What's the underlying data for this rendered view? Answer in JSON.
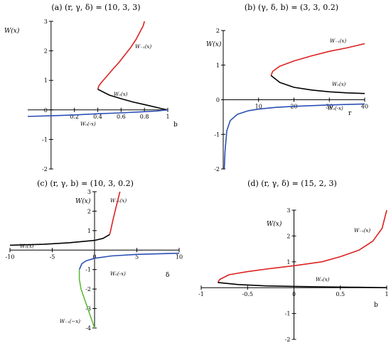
{
  "colors": {
    "red": "#dd2222",
    "black": "#000000",
    "blue": "#2b4fb5",
    "green": "#5dbb3a"
  },
  "chart_data": [
    {
      "id": "a",
      "type": "line",
      "title": "(a) (r, γ, δ) = (10, 3, 3)",
      "ylabel": "W(x)",
      "xlabel": "b",
      "xlim": [
        -0.2,
        1.0
      ],
      "ylim": [
        -2,
        3
      ],
      "xticks": [
        0.2,
        0.4,
        0.6,
        0.8,
        1
      ],
      "yticks": [
        -2,
        -1,
        0,
        1,
        2,
        3
      ],
      "series": [
        {
          "name": "W₋₁(x)",
          "color": "red",
          "x": [
            0.4,
            0.41,
            0.44,
            0.48,
            0.53,
            0.58,
            0.63,
            0.68,
            0.73,
            0.77,
            0.79,
            0.8
          ],
          "y": [
            0.7,
            0.82,
            0.97,
            1.15,
            1.38,
            1.6,
            1.85,
            2.1,
            2.4,
            2.7,
            2.85,
            3.0
          ]
        },
        {
          "name": "W₀(x)",
          "color": "black",
          "x": [
            0.4,
            0.5,
            0.6,
            0.7,
            0.8,
            0.9,
            0.95,
            1.0
          ],
          "y": [
            0.7,
            0.5,
            0.38,
            0.27,
            0.18,
            0.09,
            0.04,
            0.0
          ]
        },
        {
          "name": "W₀(-x)",
          "color": "blue",
          "x": [
            -0.2,
            0.0,
            0.2,
            0.4,
            0.6,
            0.8,
            0.9,
            0.95,
            1.0
          ],
          "y": [
            -0.22,
            -0.2,
            -0.17,
            -0.13,
            -0.1,
            -0.06,
            -0.04,
            -0.02,
            0.0
          ]
        }
      ]
    },
    {
      "id": "b",
      "type": "line",
      "title": "(b) (γ, δ, b) = (3, 3, 0.2)",
      "ylabel": "W(x)",
      "xlabel": "r",
      "xlim": [
        0,
        40
      ],
      "ylim": [
        -2,
        2
      ],
      "xticks": [
        10,
        20,
        30,
        40
      ],
      "yticks": [
        -2,
        -1,
        0,
        1,
        2
      ],
      "series": [
        {
          "name": "W₋₁(x)",
          "color": "red",
          "x": [
            13.5,
            14,
            16,
            20,
            25,
            30,
            35,
            40
          ],
          "y": [
            0.7,
            0.82,
            0.97,
            1.12,
            1.27,
            1.4,
            1.5,
            1.62
          ]
        },
        {
          "name": "W₀(x)",
          "color": "black",
          "x": [
            13.5,
            16,
            20,
            25,
            30,
            35,
            40
          ],
          "y": [
            0.7,
            0.5,
            0.36,
            0.28,
            0.23,
            0.2,
            0.18
          ]
        },
        {
          "name": "W₀(-x)",
          "color": "blue",
          "x": [
            0.3,
            0.5,
            1,
            2,
            4,
            7,
            10,
            15,
            20,
            30,
            40
          ],
          "y": [
            -2.0,
            -1.5,
            -0.9,
            -0.6,
            -0.42,
            -0.32,
            -0.27,
            -0.22,
            -0.19,
            -0.15,
            -0.12
          ]
        }
      ]
    },
    {
      "id": "c",
      "type": "line",
      "title": "(c) (r, γ, b) = (10, 3, 0.2)",
      "ylabel": "W(x)",
      "xlabel": "δ",
      "xlim": [
        -10,
        10
      ],
      "ylim": [
        -4,
        3
      ],
      "xticks": [
        -10,
        -5,
        0,
        5,
        10
      ],
      "yticks": [
        -4,
        -3,
        -2,
        -1,
        1,
        2,
        3
      ],
      "series": [
        {
          "name": "W₋₁(x)",
          "color": "red",
          "x": [
            3.0,
            2.6,
            2.2,
            2.0,
            1.9,
            1.85,
            1.8,
            1.8
          ],
          "y": [
            3.0,
            2.3,
            1.6,
            1.2,
            1.0,
            0.9,
            0.85,
            0.8
          ]
        },
        {
          "name": "W₀(x)",
          "color": "black",
          "x": [
            -10,
            -6,
            -3,
            0,
            1,
            1.8
          ],
          "y": [
            0.25,
            0.3,
            0.38,
            0.5,
            0.6,
            0.8
          ]
        },
        {
          "name": "W₀(-x)",
          "color": "blue",
          "x": [
            -1.8,
            -1.5,
            -1,
            0,
            2,
            5,
            10
          ],
          "y": [
            -1.0,
            -0.7,
            -0.55,
            -0.42,
            -0.3,
            -0.22,
            -0.16
          ]
        },
        {
          "name": "W₋₁(−x)",
          "color": "green",
          "x": [
            -1.8,
            -1.8,
            -1.6,
            -1.2,
            -0.8,
            -0.4,
            0.0
          ],
          "y": [
            -1.0,
            -1.5,
            -2.0,
            -2.5,
            -3.0,
            -3.5,
            -4.0
          ]
        }
      ]
    },
    {
      "id": "d",
      "type": "line",
      "title": "(d) (r, γ, δ) = (15, 2, 3)",
      "ylabel": "W(x)",
      "xlabel": "b",
      "xlim": [
        -1,
        1
      ],
      "ylim": [
        -2,
        3
      ],
      "xticks": [
        -1,
        -0.5,
        0,
        0.5,
        1
      ],
      "yticks": [
        -2,
        -1,
        1,
        2,
        3
      ],
      "series": [
        {
          "name": "W₋₁(x)",
          "color": "red",
          "x": [
            -0.82,
            -0.8,
            -0.7,
            -0.5,
            -0.3,
            0.0,
            0.3,
            0.5,
            0.7,
            0.85,
            0.95,
            1.0
          ],
          "y": [
            0.2,
            0.32,
            0.5,
            0.62,
            0.72,
            0.85,
            1.0,
            1.2,
            1.45,
            1.8,
            2.3,
            3.0
          ]
        },
        {
          "name": "W₀(x)",
          "color": "black",
          "x": [
            -0.82,
            -0.6,
            -0.3,
            0.0,
            0.3,
            0.6,
            1.0
          ],
          "y": [
            0.2,
            0.12,
            0.07,
            0.05,
            0.03,
            0.02,
            0.0
          ]
        }
      ]
    }
  ]
}
